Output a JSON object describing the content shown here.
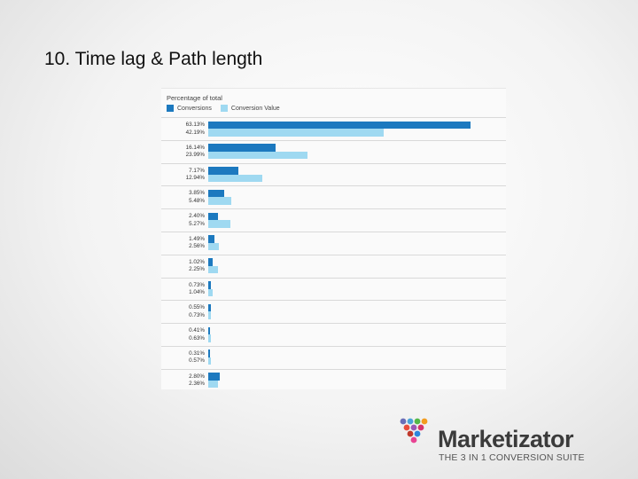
{
  "slide": {
    "title": "10. Time lag & Path length"
  },
  "logo": {
    "name": "Marketizator",
    "tagline": "THE 3 IN 1 CONVERSION SUITE",
    "dot_colors": [
      "#6a6fb8",
      "#4aa3d8",
      "#55b848",
      "#f39c1e",
      "#e94e3c",
      "#9b59b6",
      "#d6336c",
      "#c0392b",
      "#2e86de",
      "#e84393"
    ]
  },
  "chart_data": {
    "type": "bar",
    "orientation": "horizontal",
    "title": "Percentage of total",
    "legend_position": "top-left",
    "series": [
      {
        "name": "Conversions",
        "color": "#1c79bf",
        "values": [
          63.13,
          16.14,
          7.17,
          3.85,
          2.4,
          1.49,
          1.02,
          0.73,
          0.55,
          0.41,
          0.31,
          2.8
        ]
      },
      {
        "name": "Conversion Value",
        "color": "#9fd9f1",
        "values": [
          42.19,
          23.99,
          12.94,
          5.48,
          5.27,
          2.56,
          2.25,
          1.04,
          0.73,
          0.63,
          0.57,
          2.36
        ]
      }
    ],
    "labels": [
      [
        "63.13%",
        "42.19%"
      ],
      [
        "16.14%",
        "23.99%"
      ],
      [
        "7.17%",
        "12.94%"
      ],
      [
        "3.85%",
        "5.48%"
      ],
      [
        "2.40%",
        "5.27%"
      ],
      [
        "1.49%",
        "2.56%"
      ],
      [
        "1.02%",
        "2.25%"
      ],
      [
        "0.73%",
        "1.04%"
      ],
      [
        "0.55%",
        "0.73%"
      ],
      [
        "0.41%",
        "0.63%"
      ],
      [
        "0.31%",
        "0.57%"
      ],
      [
        "2.80%",
        "2.36%"
      ]
    ],
    "xlim": [
      0,
      63.13
    ],
    "grid": true
  }
}
